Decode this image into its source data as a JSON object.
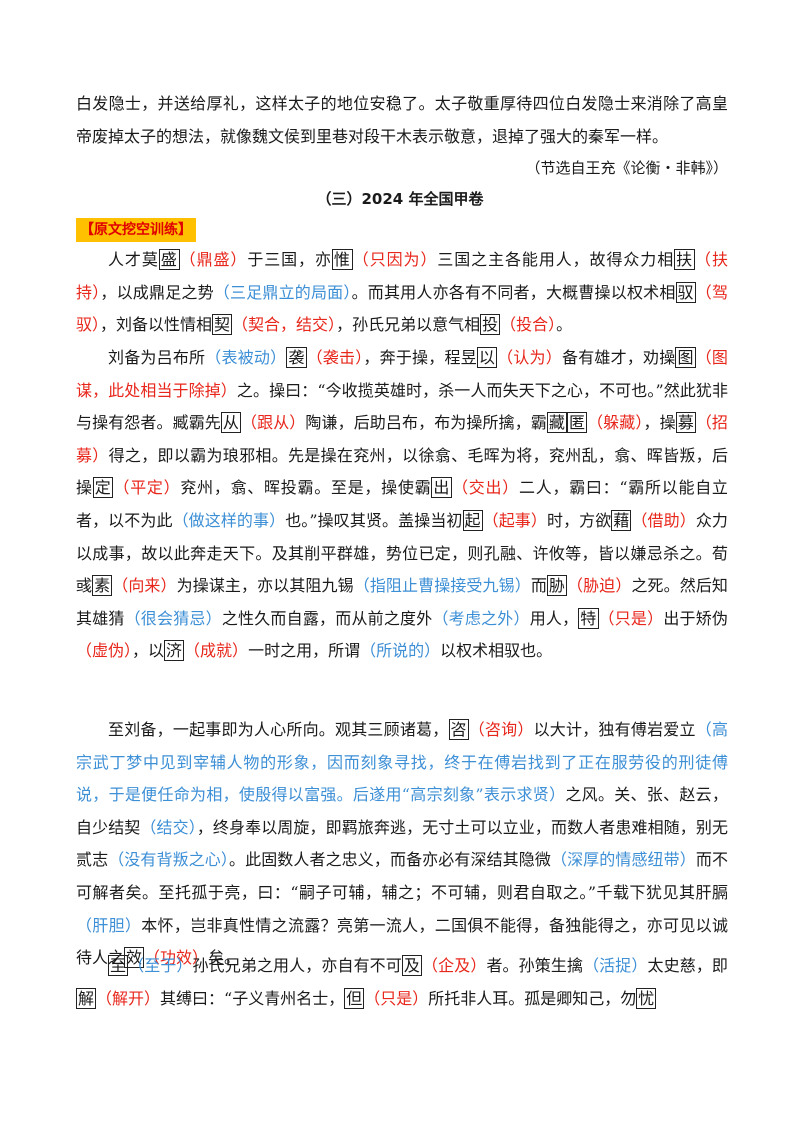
{
  "intro_text": "白发隐士，并送给厚礼，这样太子的地位安稳了。太子敬重厚待四位白发隐士来消除了高皇帝废掉太子的想法，就像魏文侯到里巷对段干木表示敬意，退掉了强大的秦军一样。",
  "source": "（节选自王充《论衡・非韩》）",
  "section_title": "（三）2024 年全国甲卷",
  "tag": "【原文挖空训练】",
  "paragraphs": [
    {
      "indent": true,
      "segments": [
        {
          "t": "人才莫"
        },
        {
          "t": "盛",
          "s": "box"
        },
        {
          "t": "（鼎盛）",
          "s": "red"
        },
        {
          "t": "于三国，亦"
        },
        {
          "t": "惟",
          "s": "box"
        },
        {
          "t": "（只因为）",
          "s": "red"
        },
        {
          "t": "三国之主各能用人，故得众力相"
        },
        {
          "t": "扶",
          "s": "box"
        },
        {
          "t": "（扶持）",
          "s": "red"
        },
        {
          "t": "，以成鼎足之势"
        },
        {
          "t": "（三足鼎立的局面）",
          "s": "blue"
        },
        {
          "t": "。而其用人亦各有不同者，大概曹操以权术相"
        },
        {
          "t": "驭",
          "s": "box"
        },
        {
          "t": "（驾驭）",
          "s": "red"
        },
        {
          "t": "，刘备以性情相"
        },
        {
          "t": "契",
          "s": "box"
        },
        {
          "t": "（契合，结交）",
          "s": "red"
        },
        {
          "t": "，孙氏兄弟以意气相"
        },
        {
          "t": "投",
          "s": "box"
        },
        {
          "t": "（投合）",
          "s": "red"
        },
        {
          "t": "。"
        }
      ]
    },
    {
      "indent": true,
      "segments": [
        {
          "t": "刘备为吕布所"
        },
        {
          "t": "（表被动）",
          "s": "blue"
        },
        {
          "t": "袭",
          "s": "box"
        },
        {
          "t": "（袭击）",
          "s": "red"
        },
        {
          "t": "，奔于操，程昱"
        },
        {
          "t": "以",
          "s": "box"
        },
        {
          "t": "（认为）",
          "s": "red"
        },
        {
          "t": "备有雄才，劝操"
        },
        {
          "t": "图",
          "s": "box"
        },
        {
          "t": "（图谋，此处相当于除掉）",
          "s": "red"
        },
        {
          "t": "之。操曰：“今收揽英雄时，杀一人而失天下之心，不可也。”然此犹非与操有怨者。臧霸先"
        },
        {
          "t": "从",
          "s": "box"
        },
        {
          "t": "（跟从）",
          "s": "red"
        },
        {
          "t": "陶谦，后助吕布，布为操所擒，霸"
        },
        {
          "t": "藏",
          "s": "box"
        },
        {
          "t": "匿",
          "s": "box"
        },
        {
          "t": "（躲藏）",
          "s": "red"
        },
        {
          "t": "，操"
        },
        {
          "t": "募",
          "s": "box"
        },
        {
          "t": "（招募）",
          "s": "red"
        },
        {
          "t": "得之，即以霸为琅邪相。先是操在兖州，以徐翕、毛晖为将，兖州乱，翕、晖皆叛，后操"
        },
        {
          "t": "定",
          "s": "box"
        },
        {
          "t": "（平定）",
          "s": "red"
        },
        {
          "t": "兖州，翕、晖投霸。至是，操使霸"
        },
        {
          "t": "出",
          "s": "box"
        },
        {
          "t": "（交出）",
          "s": "red"
        },
        {
          "t": "二人，霸曰：“霸所以能自立者，以不为此"
        },
        {
          "t": "（做这样的事）",
          "s": "blue"
        },
        {
          "t": "也。”操叹其贤。盖操当初"
        },
        {
          "t": "起",
          "s": "box"
        },
        {
          "t": "（起事）",
          "s": "red"
        },
        {
          "t": "时，方欲"
        },
        {
          "t": "藉",
          "s": "box"
        },
        {
          "t": "（借助）",
          "s": "red"
        },
        {
          "t": "众力以成事，故以此奔走天下。及其削平群雄，势位已定，则孔融、许攸等，皆以嫌忌杀之。荀彧"
        },
        {
          "t": "素",
          "s": "box"
        },
        {
          "t": "（向来）",
          "s": "red"
        },
        {
          "t": "为操谋主，亦以其阻九锡"
        },
        {
          "t": "（指阻止曹操接受九锡）",
          "s": "blue"
        },
        {
          "t": "而"
        },
        {
          "t": "胁",
          "s": "box"
        },
        {
          "t": "（胁迫）",
          "s": "red"
        },
        {
          "t": "之死。然后知其雄猜"
        },
        {
          "t": "（很会猜忌）",
          "s": "blue"
        },
        {
          "t": "之性久而自露，而从前之度外"
        },
        {
          "t": "（考虑之外）",
          "s": "blue"
        },
        {
          "t": "用人，"
        },
        {
          "t": "特",
          "s": "box"
        },
        {
          "t": "（只是）",
          "s": "red"
        },
        {
          "t": "出于矫伪"
        },
        {
          "t": "（虚伪）",
          "s": "red"
        },
        {
          "t": "，以"
        },
        {
          "t": "济",
          "s": "box"
        },
        {
          "t": "（成就）",
          "s": "red"
        },
        {
          "t": "一时之用，所谓"
        },
        {
          "t": "（所说的）",
          "s": "blue"
        },
        {
          "t": "以权术相驭也。"
        }
      ]
    },
    {
      "indent": true,
      "segments": [
        {
          "t": "至刘备，一起事即为人心所向。观其三顾诸葛，"
        },
        {
          "t": "咨",
          "s": "box"
        },
        {
          "t": "（咨询）",
          "s": "red"
        },
        {
          "t": "以大计，独有傅岩爱立"
        },
        {
          "t": "（高宗武丁梦中见到宰辅人物的形象，因而刻象寻找，终于在傅岩找到了正在服劳役的刑徒傅说，于是便任命为相，使殷得以富强。后遂用“高宗刻象”表示求贤）",
          "s": "blue"
        },
        {
          "t": "之风。关、张、赵云，自少结契"
        },
        {
          "t": "（结交）",
          "s": "blue"
        },
        {
          "t": "，终身奉以周旋，即羁旅奔逃，无寸土可以立业，而数人者患难相随，别无贰志"
        },
        {
          "t": "（没有背叛之心）",
          "s": "blue"
        },
        {
          "t": "。此固数人者之忠义，而备亦必有深结其隐微"
        },
        {
          "t": "（深厚的情感纽带）",
          "s": "blue"
        },
        {
          "t": "而不可解者矣。至托孤于亮，曰：“嗣子可辅，辅之；不可辅，则君自取之。”千载下犹见其肝膈"
        },
        {
          "t": "（肝胆）",
          "s": "blue"
        },
        {
          "t": "本怀，岂非真性情之流露？亮第一流人，二国俱不能得，备独能得之，亦可见以诚待人之"
        },
        {
          "t": "效",
          "s": "box"
        },
        {
          "t": "（功效）",
          "s": "red"
        },
        {
          "t": "矣。"
        }
      ]
    },
    {
      "indent": true,
      "segments": [
        {
          "t": "至",
          "s": "box"
        },
        {
          "t": "（至于）",
          "s": "blue"
        },
        {
          "t": "孙氏兄弟之用人，亦自有不可"
        },
        {
          "t": "及",
          "s": "box"
        },
        {
          "t": "（企及）",
          "s": "red"
        },
        {
          "t": "者。孙策生擒"
        },
        {
          "t": "（活捉）",
          "s": "blue"
        },
        {
          "t": "太史慈，即"
        },
        {
          "t": "解",
          "s": "box"
        },
        {
          "t": "（解开）",
          "s": "red"
        },
        {
          "t": "其缚曰：“子义青州名士，"
        },
        {
          "t": "但",
          "s": "box"
        },
        {
          "t": "（只是）",
          "s": "red"
        },
        {
          "t": "所托非人耳。孤是卿知己，勿"
        },
        {
          "t": "忧",
          "s": "box"
        }
      ]
    }
  ]
}
